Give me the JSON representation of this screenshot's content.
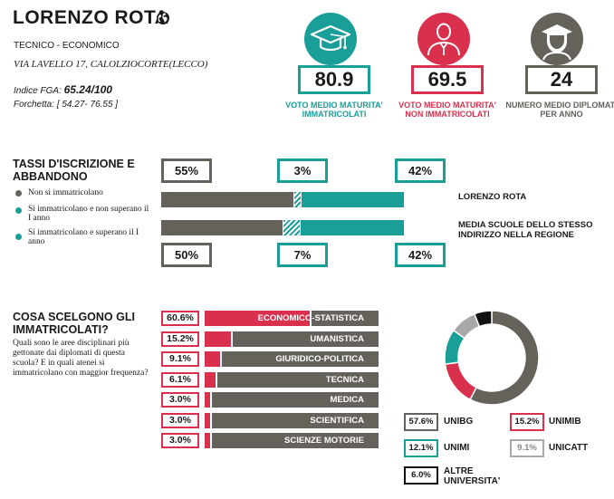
{
  "header": {
    "school_name": "LORENZO ROTA",
    "school_type": "TECNICO - ECONOMICO",
    "address": "VIA LAVELLO 17, CALOLZIOCORTE(LECCO)",
    "fga_label": "Indice FGA:",
    "fga_value": "65.24/100",
    "range_label": "Forchetta:",
    "range_value": "[ 54.27- 76.55 ]"
  },
  "stats": [
    {
      "value": "80.9",
      "label": "VOTO MEDIO MATURITA' IMMATRICOLATI",
      "icon": "graduation-cap-icon",
      "color": "#1a9e98"
    },
    {
      "value": "69.5",
      "label": "VOTO MEDIO MATURITA' NON IMMATRICOLATI",
      "icon": "person-icon",
      "color": "#d9314d"
    },
    {
      "value": "24",
      "label": "NUMERO MEDIO DIPLOMATI PER ANNO",
      "icon": "graduate-icon",
      "color": "#65625c"
    }
  ],
  "enrollment": {
    "title": "TASSI D'ISCRIZIONE E ABBANDONO",
    "legend": [
      {
        "label": "Non si immatricolano",
        "color": "#65625c"
      },
      {
        "label": "Si immatricolano e non superano il I anno",
        "color": "#1a9e98"
      },
      {
        "label": "Si immatricolano e superano il I anno",
        "color": "#1a9e98"
      }
    ],
    "rows": [
      {
        "name": "LORENZO ROTA",
        "non_immatricolati": 55,
        "abbandono": 3,
        "superano": 42,
        "labels": [
          "55%",
          "3%",
          "42%"
        ]
      },
      {
        "name": "MEDIA SCUOLE DELLO STESSO INDIRIZZO NELLA REGIONE",
        "non_immatricolati": 50,
        "abbandono": 7,
        "superano": 42,
        "labels": [
          "50%",
          "7%",
          "42%"
        ]
      }
    ]
  },
  "areas": {
    "title": "COSA SCELGONO GLI IMMATRICOLATI?",
    "question": "Quali sono le aree disciplinari più gettonate dai diplomati di questa scuola? E in quali atenei si immatricolano con maggior frequenza?",
    "items": [
      {
        "pct": "60.6%",
        "value": 60.6,
        "name": "ECONOMICO-STATISTICA"
      },
      {
        "pct": "15.2%",
        "value": 15.2,
        "name": "UMANISTICA"
      },
      {
        "pct": "9.1%",
        "value": 9.1,
        "name": "GIURIDICO-POLITICA"
      },
      {
        "pct": "6.1%",
        "value": 6.1,
        "name": "TECNICA"
      },
      {
        "pct": "3.0%",
        "value": 3.0,
        "name": "MEDICA"
      },
      {
        "pct": "3.0%",
        "value": 3.0,
        "name": "SCIENTIFICA"
      },
      {
        "pct": "3.0%",
        "value": 3.0,
        "name": "SCIENZE MOTORIE"
      }
    ]
  },
  "chart_data": {
    "type": "pie",
    "categories": [
      "UNIBG",
      "UNIMIB",
      "UNIMI",
      "UNICATT",
      "ALTRE UNIVERSITA'"
    ],
    "values": [
      57.6,
      15.2,
      12.1,
      9.1,
      6.0
    ],
    "labels": [
      "57.6%",
      "15.2%",
      "12.1%",
      "9.1%",
      "6.0%"
    ],
    "colors": [
      "#65625c",
      "#d9314d",
      "#1a9e98",
      "#a8a8a8",
      "#111111"
    ],
    "legend": "below"
  }
}
